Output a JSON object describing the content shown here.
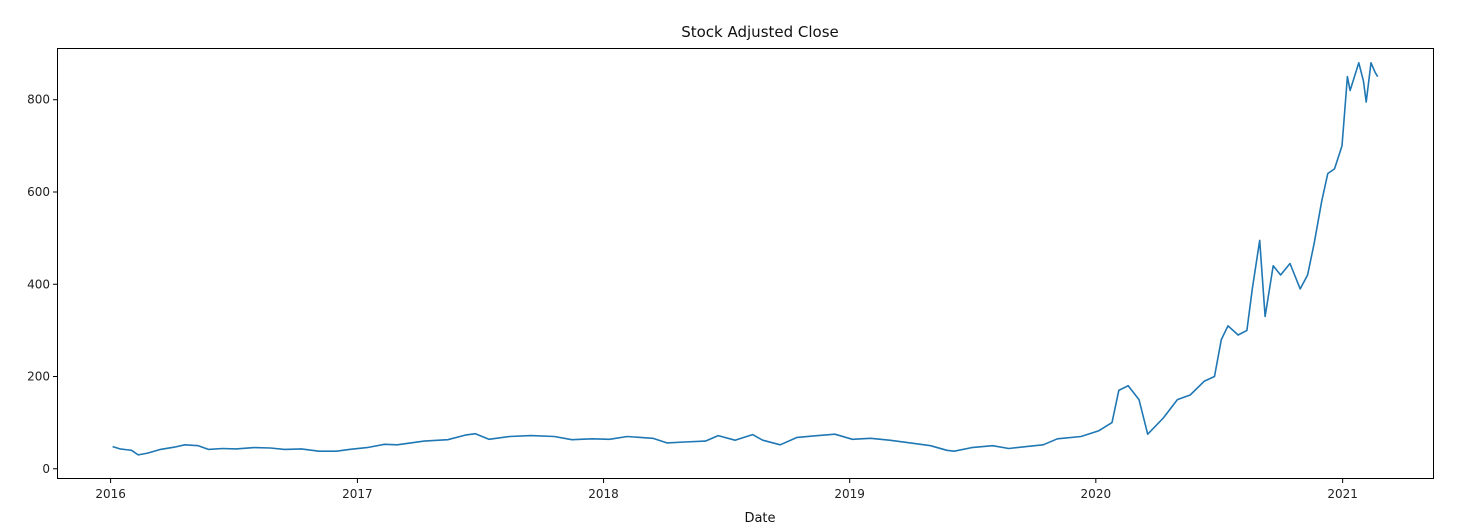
{
  "chart_data": {
    "type": "line",
    "title": "Stock Adjusted Close",
    "xlabel": "Date",
    "ylabel": "",
    "grid": false,
    "legend": "none",
    "xlim": [
      "2015-10-15",
      "2021-05-15"
    ],
    "ylim": [
      -20,
      910
    ],
    "x_ticks": [
      "2016",
      "2017",
      "2018",
      "2019",
      "2020",
      "2021"
    ],
    "y_ticks": [
      0,
      200,
      400,
      600,
      800
    ],
    "series": [
      {
        "color": "#1f77b4",
        "points": [
          [
            "2016-01-04",
            48
          ],
          [
            "2016-01-15",
            43
          ],
          [
            "2016-02-01",
            40
          ],
          [
            "2016-02-11",
            30
          ],
          [
            "2016-02-25",
            34
          ],
          [
            "2016-03-15",
            42
          ],
          [
            "2016-04-05",
            47
          ],
          [
            "2016-04-20",
            52
          ],
          [
            "2016-05-10",
            50
          ],
          [
            "2016-05-25",
            42
          ],
          [
            "2016-06-15",
            44
          ],
          [
            "2016-07-05",
            43
          ],
          [
            "2016-08-01",
            46
          ],
          [
            "2016-08-25",
            45
          ],
          [
            "2016-09-15",
            42
          ],
          [
            "2016-10-10",
            43
          ],
          [
            "2016-11-05",
            38
          ],
          [
            "2016-12-01",
            38
          ],
          [
            "2016-12-20",
            42
          ],
          [
            "2017-01-15",
            46
          ],
          [
            "2017-02-10",
            53
          ],
          [
            "2017-03-01",
            52
          ],
          [
            "2017-04-10",
            60
          ],
          [
            "2017-05-15",
            63
          ],
          [
            "2017-06-10",
            73
          ],
          [
            "2017-06-25",
            76
          ],
          [
            "2017-07-15",
            64
          ],
          [
            "2017-08-15",
            70
          ],
          [
            "2017-09-15",
            72
          ],
          [
            "2017-10-20",
            70
          ],
          [
            "2017-11-15",
            63
          ],
          [
            "2017-12-15",
            65
          ],
          [
            "2018-01-10",
            64
          ],
          [
            "2018-02-05",
            70
          ],
          [
            "2018-03-15",
            66
          ],
          [
            "2018-04-05",
            56
          ],
          [
            "2018-05-01",
            58
          ],
          [
            "2018-06-01",
            60
          ],
          [
            "2018-06-20",
            72
          ],
          [
            "2018-07-15",
            62
          ],
          [
            "2018-08-10",
            74
          ],
          [
            "2018-08-25",
            62
          ],
          [
            "2018-09-20",
            52
          ],
          [
            "2018-10-15",
            68
          ],
          [
            "2018-11-15",
            72
          ],
          [
            "2018-12-10",
            75
          ],
          [
            "2019-01-05",
            64
          ],
          [
            "2019-02-01",
            66
          ],
          [
            "2019-03-01",
            62
          ],
          [
            "2019-04-01",
            56
          ],
          [
            "2019-05-01",
            50
          ],
          [
            "2019-05-25",
            40
          ],
          [
            "2019-06-05",
            38
          ],
          [
            "2019-07-01",
            46
          ],
          [
            "2019-08-01",
            50
          ],
          [
            "2019-08-25",
            44
          ],
          [
            "2019-09-20",
            48
          ],
          [
            "2019-10-15",
            52
          ],
          [
            "2019-11-05",
            65
          ],
          [
            "2019-12-10",
            70
          ],
          [
            "2020-01-05",
            82
          ],
          [
            "2020-01-25",
            100
          ],
          [
            "2020-02-04",
            170
          ],
          [
            "2020-02-18",
            180
          ],
          [
            "2020-03-05",
            150
          ],
          [
            "2020-03-18",
            75
          ],
          [
            "2020-04-10",
            110
          ],
          [
            "2020-05-01",
            150
          ],
          [
            "2020-05-20",
            160
          ],
          [
            "2020-06-10",
            190
          ],
          [
            "2020-06-25",
            200
          ],
          [
            "2020-07-05",
            280
          ],
          [
            "2020-07-15",
            310
          ],
          [
            "2020-07-30",
            290
          ],
          [
            "2020-08-12",
            300
          ],
          [
            "2020-08-20",
            390
          ],
          [
            "2020-08-31",
            495
          ],
          [
            "2020-09-08",
            330
          ],
          [
            "2020-09-20",
            440
          ],
          [
            "2020-10-01",
            420
          ],
          [
            "2020-10-15",
            445
          ],
          [
            "2020-10-30",
            390
          ],
          [
            "2020-11-10",
            420
          ],
          [
            "2020-11-20",
            490
          ],
          [
            "2020-12-01",
            580
          ],
          [
            "2020-12-10",
            640
          ],
          [
            "2020-12-20",
            650
          ],
          [
            "2020-12-31",
            700
          ],
          [
            "2021-01-08",
            850
          ],
          [
            "2021-01-12",
            820
          ],
          [
            "2021-01-25",
            880
          ],
          [
            "2021-02-01",
            840
          ],
          [
            "2021-02-05",
            795
          ],
          [
            "2021-02-12",
            880
          ],
          [
            "2021-02-18",
            860
          ],
          [
            "2021-02-22",
            850
          ]
        ]
      }
    ]
  }
}
